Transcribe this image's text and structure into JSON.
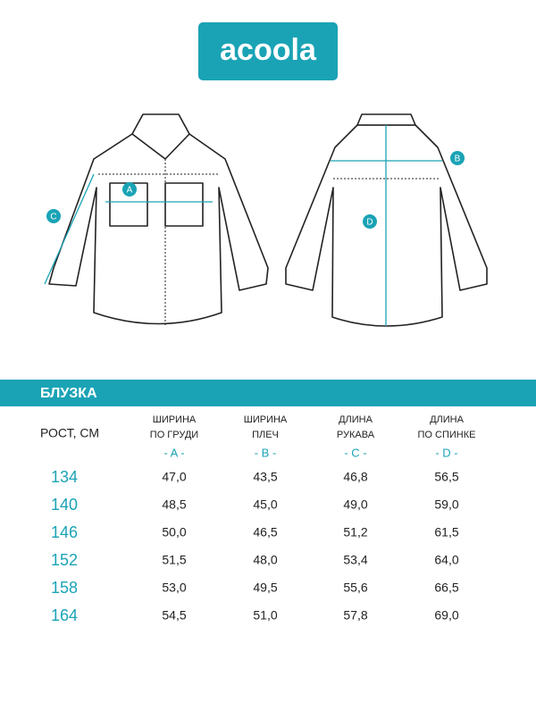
{
  "logo": "acoola",
  "diagram": {
    "labels": [
      "A",
      "B",
      "C",
      "D"
    ]
  },
  "section_title": "БЛУЗКА",
  "table": {
    "header": [
      {
        "lines": [
          "РОСТ, СМ"
        ]
      },
      {
        "lines": [
          "ШИРИНА",
          "ПО ГРУДИ"
        ],
        "code": "- A -"
      },
      {
        "lines": [
          "ШИРИНА",
          "ПЛЕЧ"
        ],
        "code": "- B -"
      },
      {
        "lines": [
          "ДЛИНА",
          "РУКАВА"
        ],
        "code": "- C -"
      },
      {
        "lines": [
          "ДЛИНА",
          "ПО СПИНКЕ"
        ],
        "code": "- D -"
      }
    ],
    "rows": [
      [
        "134",
        "47,0",
        "43,5",
        "46,8",
        "56,5"
      ],
      [
        "140",
        "48,5",
        "45,0",
        "49,0",
        "59,0"
      ],
      [
        "146",
        "50,0",
        "46,5",
        "51,2",
        "61,5"
      ],
      [
        "152",
        "51,5",
        "48,0",
        "53,4",
        "64,0"
      ],
      [
        "158",
        "53,0",
        "49,5",
        "55,6",
        "66,5"
      ],
      [
        "164",
        "54,5",
        "51,0",
        "57,8",
        "69,0"
      ]
    ]
  }
}
